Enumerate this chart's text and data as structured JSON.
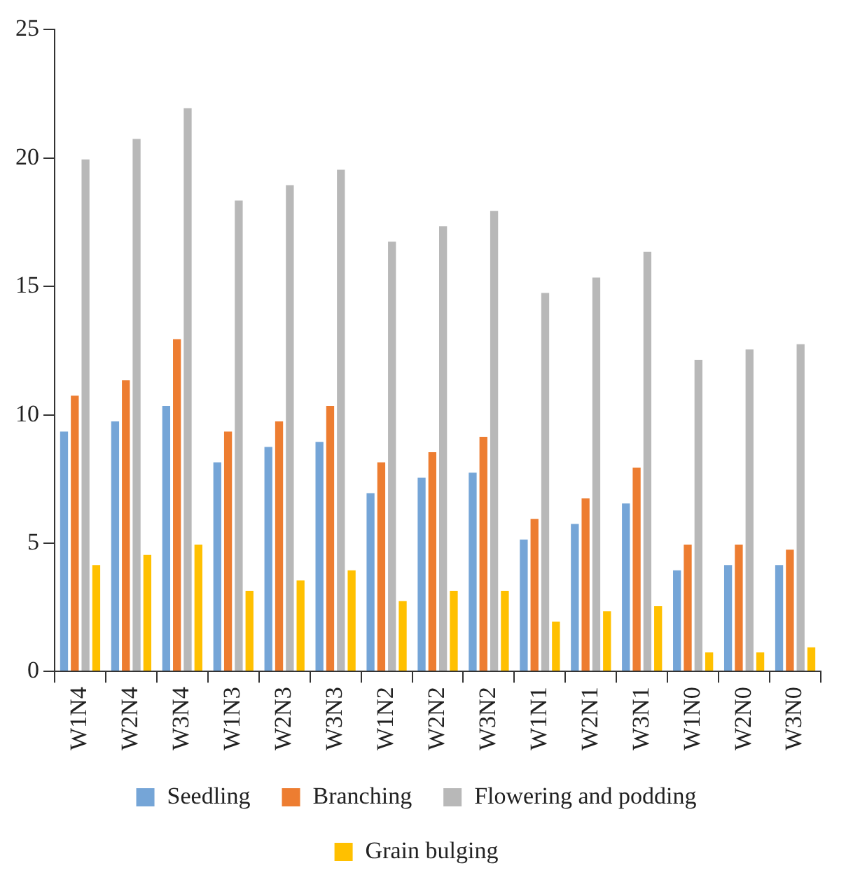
{
  "chart_data": {
    "type": "bar",
    "categories": [
      "W1N4",
      "W2N4",
      "W3N4",
      "W1N3",
      "W2N3",
      "W3N3",
      "W1N2",
      "W2N2",
      "W3N2",
      "W1N1",
      "W2N1",
      "W3N1",
      "W1N0",
      "W2N0",
      "W3N0"
    ],
    "series": [
      {
        "name": "Seedling",
        "color": "#75a5d7",
        "values": [
          9.4,
          9.8,
          10.4,
          8.2,
          8.8,
          9.0,
          7.0,
          7.6,
          7.8,
          5.2,
          5.8,
          6.6,
          4.0,
          4.2,
          4.2
        ]
      },
      {
        "name": "Branching",
        "color": "#ed7d31",
        "values": [
          10.8,
          11.4,
          13.0,
          9.4,
          9.8,
          10.4,
          8.2,
          8.6,
          9.2,
          6.0,
          6.8,
          8.0,
          5.0,
          5.0,
          4.8
        ]
      },
      {
        "name": "Flowering and podding",
        "color": "#b8b8b8",
        "values": [
          20.0,
          20.8,
          22.0,
          18.4,
          19.0,
          19.6,
          16.8,
          17.4,
          18.0,
          14.8,
          15.4,
          16.4,
          12.2,
          12.6,
          12.8
        ]
      },
      {
        "name": "Grain bulging",
        "color": "#ffc000",
        "values": [
          4.2,
          4.6,
          5.0,
          3.2,
          3.6,
          4.0,
          2.8,
          3.2,
          3.2,
          2.0,
          2.4,
          2.6,
          0.8,
          0.8,
          1.0
        ]
      }
    ],
    "ylim": [
      0,
      25
    ],
    "yticks": [
      0,
      5,
      10,
      15,
      20,
      25
    ],
    "grid": false,
    "legend": "bottom"
  }
}
